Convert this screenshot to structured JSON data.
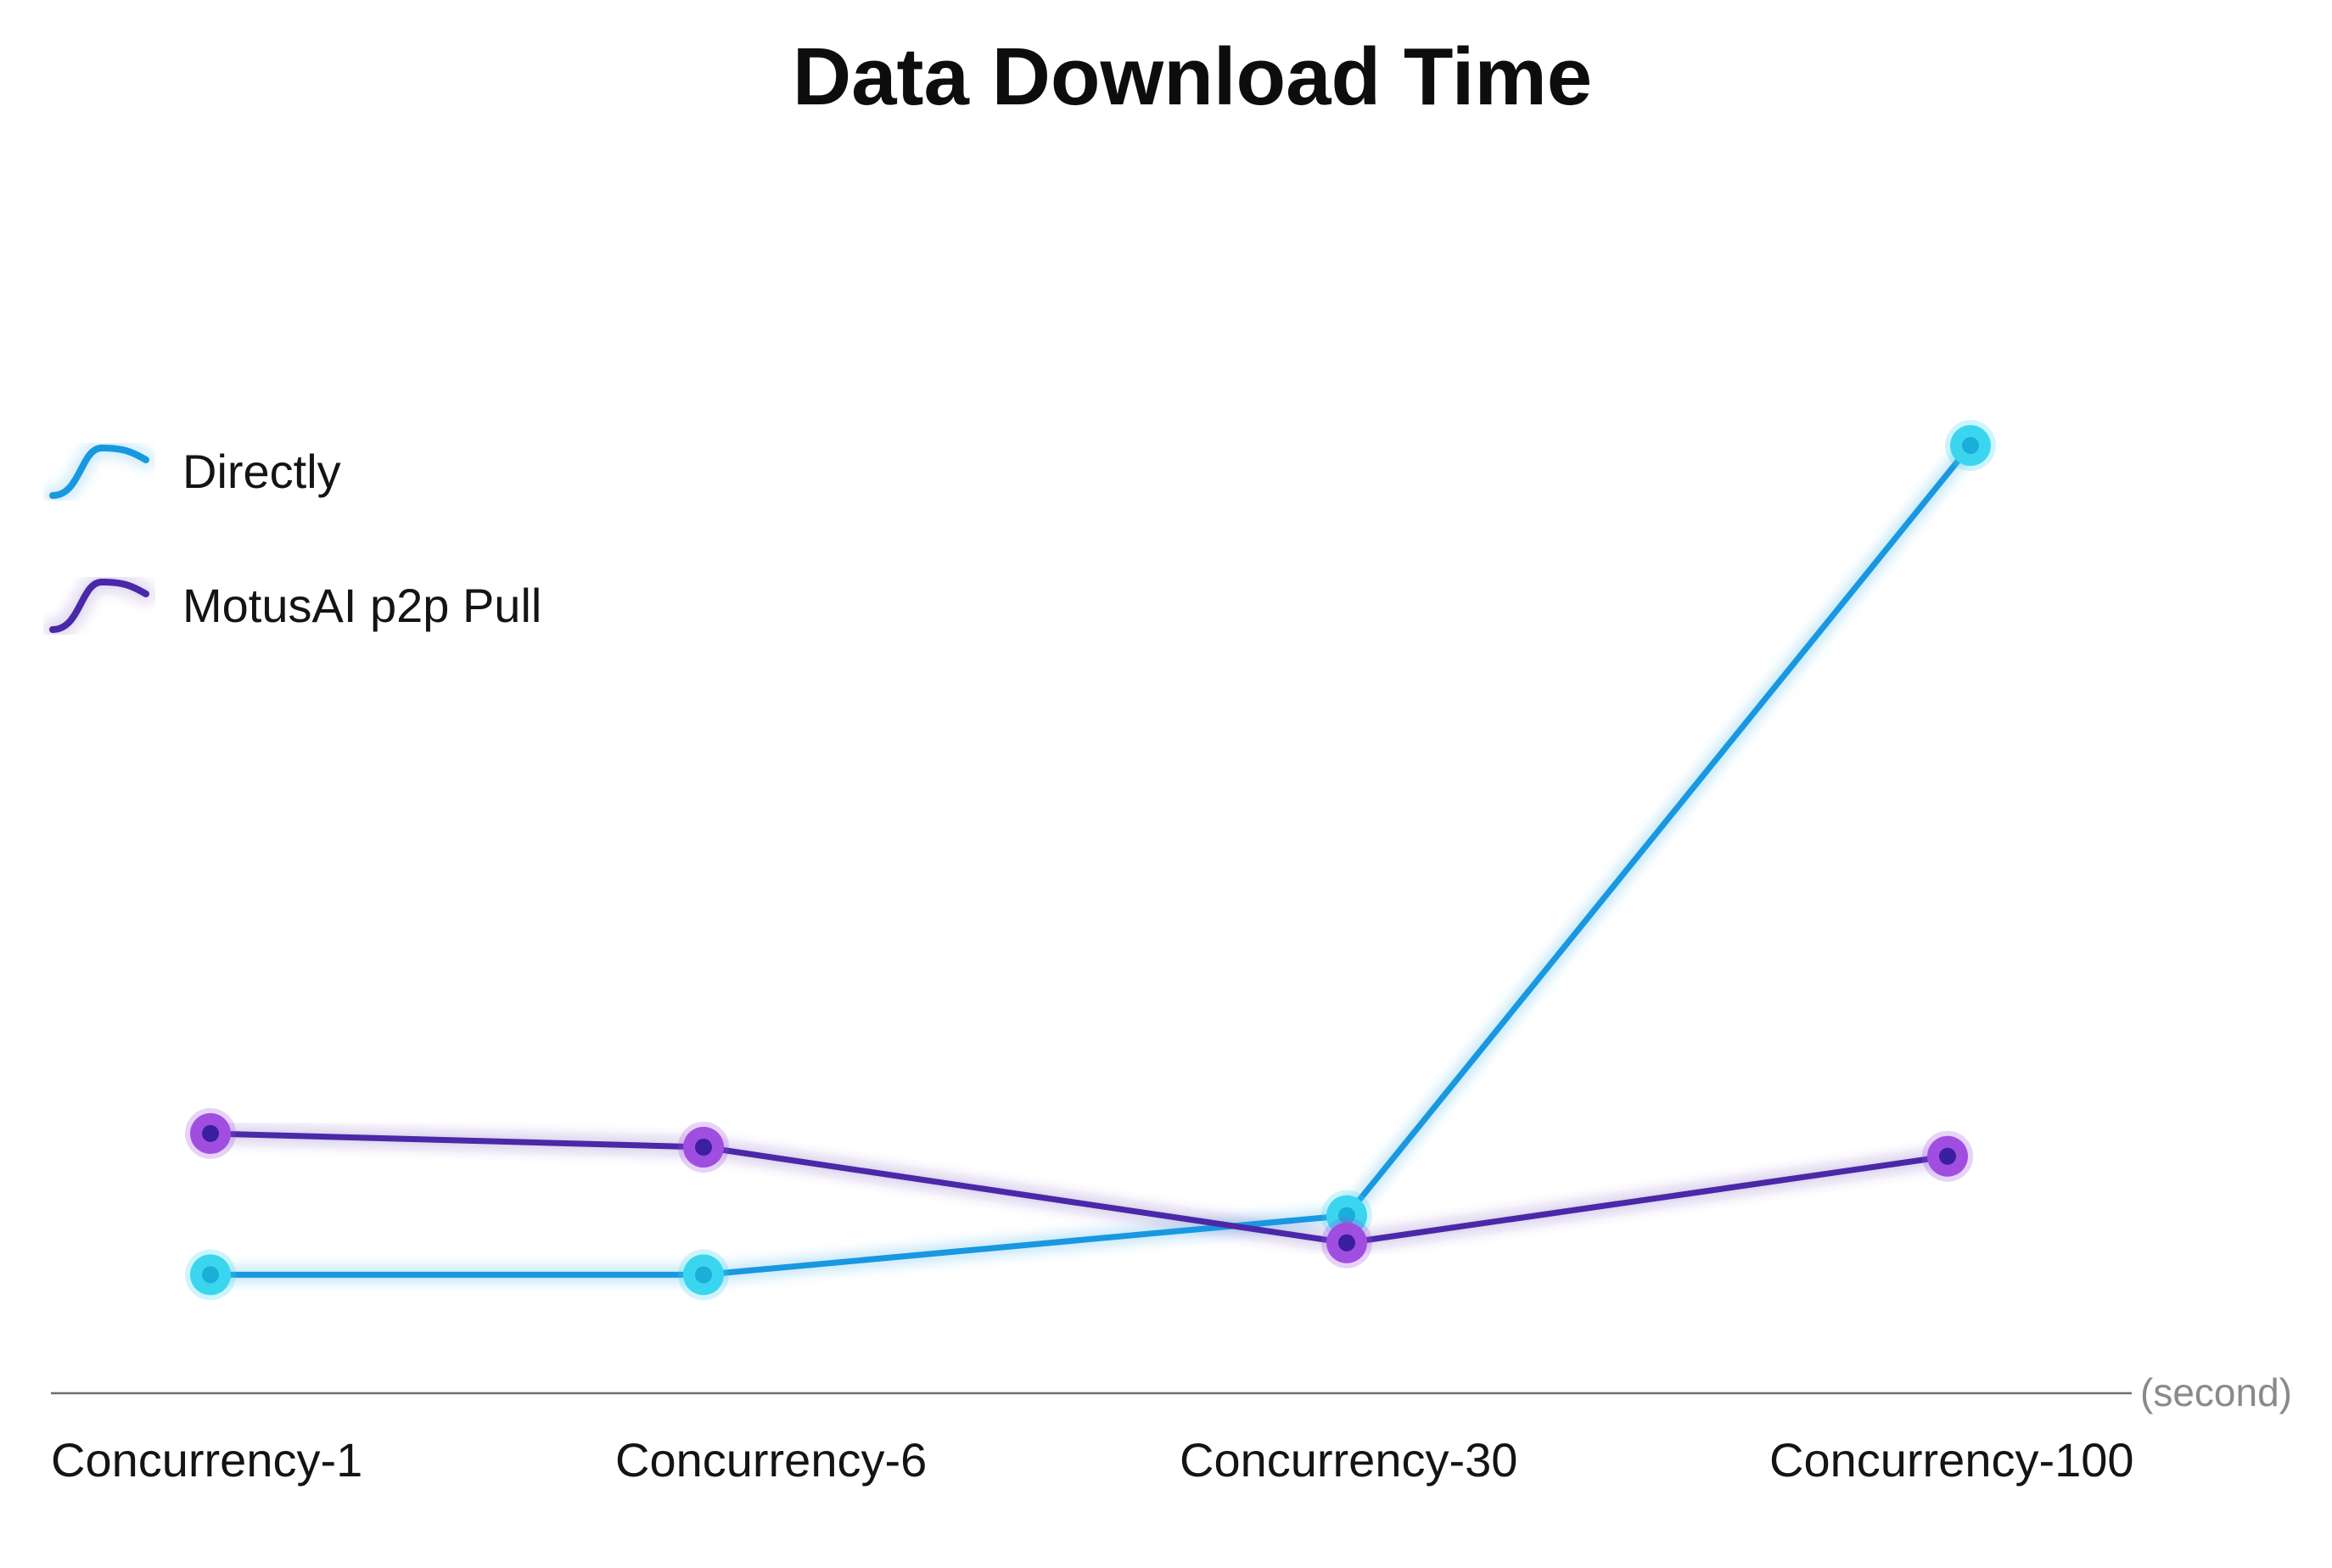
{
  "chart_data": {
    "type": "line",
    "title": "Data Download Time",
    "xlabel": "",
    "ylabel": "",
    "unit_label": "(second)",
    "categories": [
      "Concurrency-1",
      "Concurrency-6",
      "Concurrency-30",
      "Concurrency-100"
    ],
    "ylim": [
      0,
      100
    ],
    "grid": false,
    "legend_position": "top-left",
    "series": [
      {
        "name": "Directly",
        "values": [
          13,
          13,
          19.5,
          104
        ],
        "color": "#1898e0",
        "marker_outer": "#3ad6f0",
        "marker_inner": "#1aaed8"
      },
      {
        "name": "MotusAI p2p Pull",
        "values": [
          28.5,
          27,
          16.5,
          26
        ],
        "color": "#4a28a8",
        "marker_outer": "#a04ee0",
        "marker_inner": "#3a1fa0"
      }
    ]
  }
}
